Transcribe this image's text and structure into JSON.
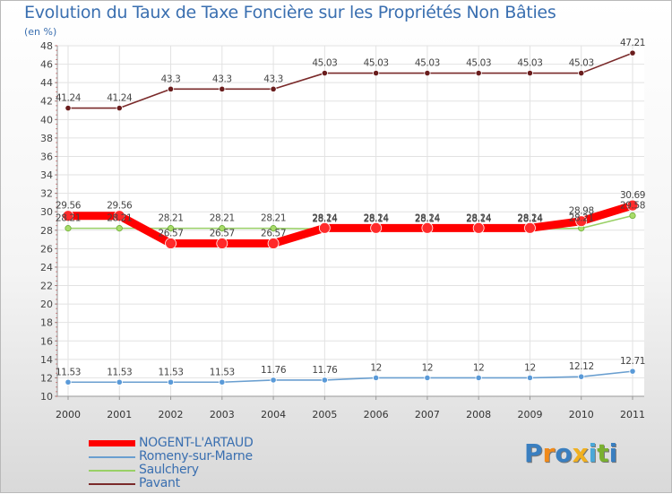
{
  "chart_data": {
    "type": "line",
    "title": "Evolution du Taux de Taxe Foncière sur les Propriétés Non Bâties",
    "ylabel": "(en %)",
    "xlabel": "",
    "ylim": [
      10,
      48
    ],
    "ytick_step": 2,
    "x": [
      "2000",
      "2001",
      "2002",
      "2003",
      "2004",
      "2005",
      "2006",
      "2007",
      "2008",
      "2009",
      "2010",
      "2011"
    ],
    "series": [
      {
        "name": "NOGENT-L'ARTAUD",
        "color": "#ff0000",
        "emphasis": true,
        "values": [
          29.56,
          29.56,
          26.57,
          26.57,
          26.57,
          28.24,
          28.24,
          28.24,
          28.24,
          28.24,
          28.98,
          30.69
        ]
      },
      {
        "name": "Romeny-sur-Marne",
        "color": "#6a9fd0",
        "emphasis": false,
        "values": [
          11.53,
          11.53,
          11.53,
          11.53,
          11.76,
          11.76,
          12,
          12,
          12,
          12,
          12.12,
          12.71
        ]
      },
      {
        "name": "Saulchery",
        "color": "#99d066",
        "emphasis": false,
        "values": [
          28.21,
          28.21,
          28.21,
          28.21,
          28.21,
          28.14,
          28.14,
          28.14,
          28.14,
          28.14,
          28.21,
          29.58
        ]
      },
      {
        "name": "Pavant",
        "color": "#7a2a2a",
        "emphasis": false,
        "values": [
          41.24,
          41.24,
          43.3,
          43.3,
          43.3,
          45.03,
          45.03,
          45.03,
          45.03,
          45.03,
          45.03,
          47.21
        ]
      }
    ],
    "point_labels": [
      {
        "series": 0,
        "labels": [
          "29.56",
          "29.56",
          "26.57",
          "26.57",
          "26.57",
          "28.24",
          "28.24",
          "28.24",
          "28.24",
          "28.24",
          "28.98",
          "30.69"
        ]
      },
      {
        "series": 1,
        "labels": [
          "11.53",
          "11.53",
          "11.53",
          "11.53",
          "11.76",
          "11.76",
          "12",
          "12",
          "12",
          "12",
          "12.12",
          "12.71"
        ]
      },
      {
        "series": 2,
        "labels": [
          "28.21",
          "28.21",
          "28.21",
          "28.21",
          "28.21",
          "28.14",
          "28.14",
          "28.14",
          "28.14",
          "28.14",
          "28.21",
          "29.58"
        ]
      },
      {
        "series": 3,
        "labels": [
          "41.24",
          "41.24",
          "43.3",
          "43.3",
          "43.3",
          "45.03",
          "45.03",
          "45.03",
          "45.03",
          "45.03",
          "45.03",
          "47.21"
        ]
      }
    ]
  },
  "legend": [
    {
      "label": "NOGENT-L'ARTAUD",
      "color": "#ff0000"
    },
    {
      "label": "Romeny-sur-Marne",
      "color": "#6a9fd0"
    },
    {
      "label": "Saulchery",
      "color": "#99d066"
    },
    {
      "label": "Pavant",
      "color": "#7a2a2a"
    }
  ],
  "logo": {
    "text": "Proxiti",
    "letters": [
      {
        "char": "P",
        "color": "#3a7fc0"
      },
      {
        "char": "r",
        "color": "#f08a1a"
      },
      {
        "char": "o",
        "color": "#3a7fc0"
      },
      {
        "char": "x",
        "color": "#f0b020"
      },
      {
        "char": "i",
        "color": "#4aa8d8"
      },
      {
        "char": "t",
        "color": "#7ab030"
      },
      {
        "char": "i",
        "color": "#3a7fc0"
      }
    ]
  }
}
